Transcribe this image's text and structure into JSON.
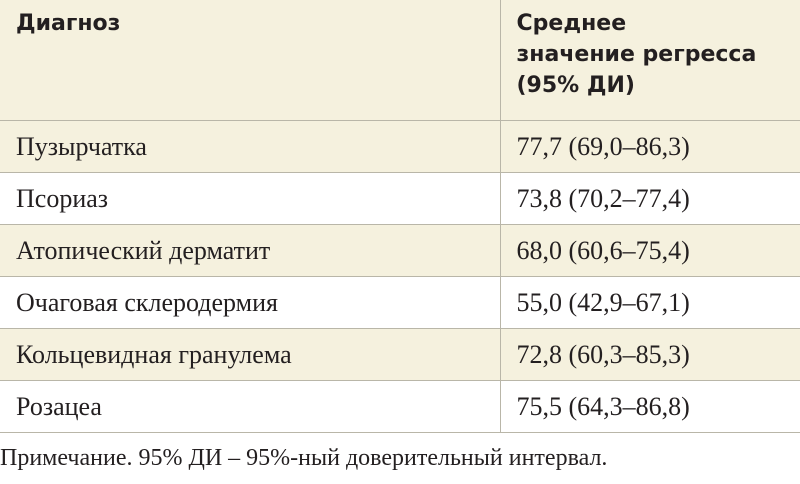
{
  "table": {
    "header": [
      "Диагноз",
      "Среднее\nзначение регресса\n(95% ДИ)"
    ],
    "rows": [
      [
        "Пузырчатка",
        "77,7 (69,0–86,3)"
      ],
      [
        "Псориаз",
        "73,8 (70,2–77,4)"
      ],
      [
        "Атопический дерматит",
        "68,0 (60,6–75,4)"
      ],
      [
        "Очаговая склеродермия",
        "55,0 (42,9–67,1)"
      ],
      [
        "Кольцевидная гранулема",
        "72,8 (60,3–85,3)"
      ],
      [
        "Розацеа",
        "75,5 (64,3–86,8)"
      ]
    ]
  },
  "note": "Примечание. 95% ДИ – 95%-ный доверительный интервал."
}
